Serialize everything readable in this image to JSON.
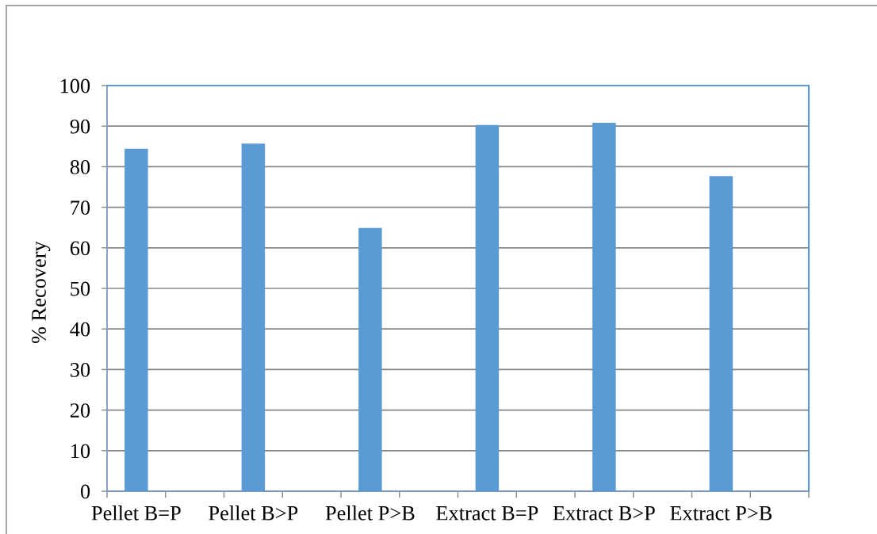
{
  "chart_data": {
    "type": "bar",
    "ylabel": "% Recovery",
    "categories": [
      "Pellet B=P",
      null,
      "Pellet B>P",
      null,
      "Pellet P>B",
      null,
      "Extract B=P",
      null,
      "Extract B>P",
      null,
      "Extract P>B",
      null
    ],
    "values": [
      84.4,
      null,
      85.7,
      null,
      64.9,
      null,
      90.3,
      null,
      90.8,
      null,
      77.7,
      null
    ],
    "color": "#5b9bd5",
    "ylim": [
      0,
      100
    ],
    "yticks": [
      0,
      10,
      20,
      30,
      40,
      50,
      60,
      70,
      80,
      90,
      100
    ],
    "grid": "y"
  }
}
